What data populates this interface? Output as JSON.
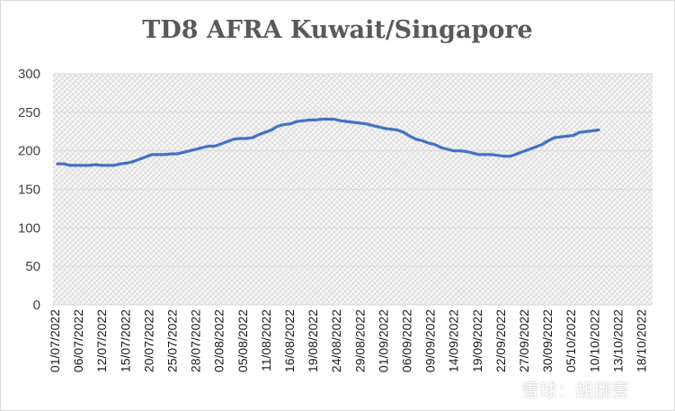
{
  "watermark": "雪球：胡捌壹",
  "chart_data": {
    "type": "line",
    "title": "TD8 AFRA Kuwait/Singapore",
    "xlabel": "",
    "ylabel": "",
    "ylim": [
      0,
      300
    ],
    "yticks": [
      0,
      50,
      100,
      150,
      200,
      250,
      300
    ],
    "grid": true,
    "plot_background": "hatched light grey",
    "line_color": "#4472c4",
    "x_tick_labels": [
      "01/07/2022",
      "06/07/2022",
      "12/07/2022",
      "15/07/2022",
      "20/07/2022",
      "25/07/2022",
      "28/07/2022",
      "02/08/2022",
      "05/08/2022",
      "11/08/2022",
      "16/08/2022",
      "19/08/2022",
      "24/08/2022",
      "29/08/2022",
      "01/09/2022",
      "06/09/2022",
      "09/09/2022",
      "14/09/2022",
      "19/09/2022",
      "22/09/2022",
      "27/09/2022",
      "30/09/2022",
      "05/10/2022",
      "10/10/2022",
      "13/10/2022",
      "18/10/2022"
    ],
    "series": [
      {
        "values": [
          183,
          183,
          181,
          181,
          181,
          181,
          182,
          181,
          181,
          181,
          183,
          184,
          186,
          189,
          192,
          195,
          195,
          195,
          196,
          196,
          198,
          200,
          202,
          204,
          206,
          206,
          209,
          212,
          215,
          216,
          216,
          217,
          221,
          224,
          227,
          232,
          234,
          235,
          238,
          239,
          240,
          240,
          241,
          241,
          241,
          239,
          238,
          237,
          236,
          235,
          233,
          231,
          229,
          228,
          227,
          224,
          219,
          215,
          213,
          210,
          208,
          204,
          202,
          200,
          200,
          199,
          197,
          195,
          195,
          195,
          194,
          193,
          193,
          196,
          199,
          202,
          205,
          208,
          213,
          217,
          218,
          219,
          220,
          224,
          225,
          226,
          227
        ]
      }
    ]
  }
}
